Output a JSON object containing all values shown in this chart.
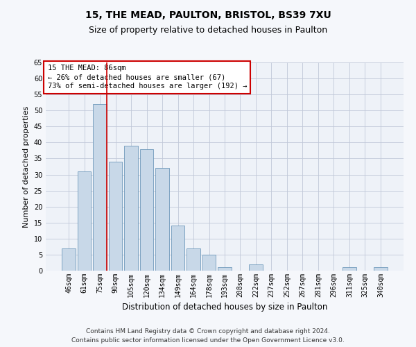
{
  "title1": "15, THE MEAD, PAULTON, BRISTOL, BS39 7XU",
  "title2": "Size of property relative to detached houses in Paulton",
  "xlabel": "Distribution of detached houses by size in Paulton",
  "ylabel": "Number of detached properties",
  "categories": [
    "46sqm",
    "61sqm",
    "75sqm",
    "90sqm",
    "105sqm",
    "120sqm",
    "134sqm",
    "149sqm",
    "164sqm",
    "178sqm",
    "193sqm",
    "208sqm",
    "222sqm",
    "237sqm",
    "252sqm",
    "267sqm",
    "281sqm",
    "296sqm",
    "311sqm",
    "325sqm",
    "340sqm"
  ],
  "values": [
    7,
    31,
    52,
    34,
    39,
    38,
    32,
    14,
    7,
    5,
    1,
    0,
    2,
    0,
    0,
    0,
    0,
    0,
    1,
    0,
    1
  ],
  "bar_color": "#c8d8e8",
  "bar_edge_color": "#5a8ab0",
  "vline_index": 2,
  "vline_color": "#cc0000",
  "annotation_text": "15 THE MEAD: 86sqm\n← 26% of detached houses are smaller (67)\n73% of semi-detached houses are larger (192) →",
  "annotation_box_color": "#cc0000",
  "annotation_bg": "#ffffff",
  "ylim": [
    0,
    65
  ],
  "yticks": [
    0,
    5,
    10,
    15,
    20,
    25,
    30,
    35,
    40,
    45,
    50,
    55,
    60,
    65
  ],
  "grid_color": "#c0c8d8",
  "bg_color": "#eef2f8",
  "fig_bg_color": "#f5f7fb",
  "footnote": "Contains HM Land Registry data © Crown copyright and database right 2024.\nContains public sector information licensed under the Open Government Licence v3.0.",
  "title1_fontsize": 10,
  "title2_fontsize": 9,
  "xlabel_fontsize": 8.5,
  "ylabel_fontsize": 8,
  "tick_fontsize": 7,
  "annotation_fontsize": 7.5,
  "footnote_fontsize": 6.5
}
